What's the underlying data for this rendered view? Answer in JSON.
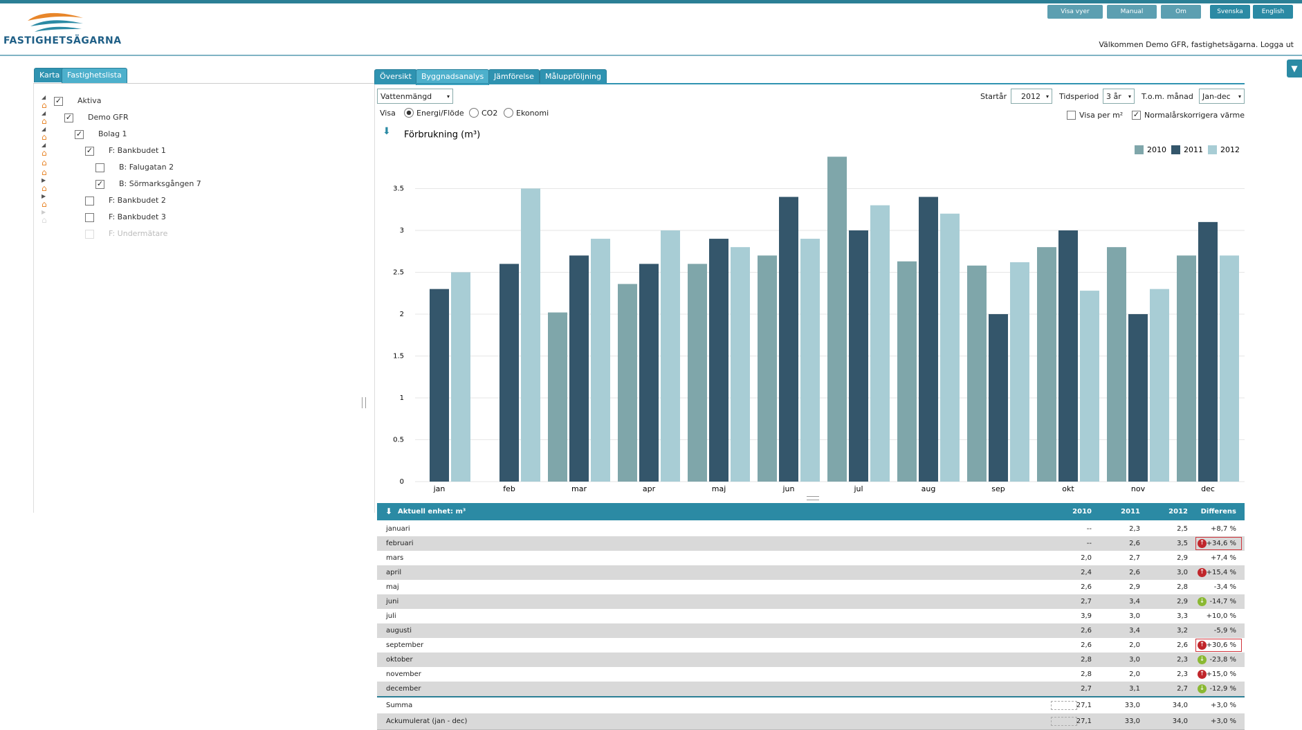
{
  "header": {
    "logo": "FASTIGHETSÄGARNA",
    "buttons": [
      "Visa vyer",
      "Manual",
      "Om",
      "Svenska",
      "English"
    ],
    "welcome": "Välkommen Demo GFR, fastighetsägarna.",
    "logout": "Logga ut"
  },
  "left_tabs": {
    "items": [
      "Karta",
      "Fastighetslista"
    ],
    "active": 1
  },
  "tree": [
    {
      "label": "Aktiva",
      "level": 0,
      "state": "expanded",
      "checked": true
    },
    {
      "label": "Demo GFR",
      "level": 1,
      "state": "expanded",
      "checked": true
    },
    {
      "label": "Bolag 1",
      "level": 2,
      "state": "expanded",
      "checked": true
    },
    {
      "label": "F: Bankbudet 1",
      "level": 3,
      "state": "expanded",
      "checked": true
    },
    {
      "label": "B: Falugatan 2",
      "level": 4,
      "state": "leaf",
      "checked": false
    },
    {
      "label": "B: Sörmarksgången 7",
      "level": 4,
      "state": "leaf",
      "checked": true
    },
    {
      "label": "F: Bankbudet 2",
      "level": 3,
      "state": "collapsed",
      "checked": false
    },
    {
      "label": "F: Bankbudet 3",
      "level": 3,
      "state": "collapsed",
      "checked": false
    },
    {
      "label": "F: Undermätare",
      "level": 3,
      "state": "disabled",
      "checked": false
    }
  ],
  "tabs": {
    "items": [
      "Översikt",
      "Byggnadsanalys",
      "Jämförelse",
      "Måluppföljning"
    ],
    "active": 1
  },
  "controls": {
    "measure": "Vattenmängd",
    "visa": "Visa",
    "options": [
      "Energi/Flöde",
      "CO2",
      "Ekonomi"
    ],
    "selected": 0,
    "start_label": "Startår",
    "start_value": "2012",
    "period_label": "Tidsperiod",
    "period_value": "3 år",
    "month_label": "T.o.m. månad",
    "month_value": "Jan-dec",
    "checkboxes": [
      {
        "label": "Visa per m²",
        "checked": false
      },
      {
        "label": "Normalårskorrigera värme",
        "checked": true
      }
    ]
  },
  "chart_data": {
    "type": "bar",
    "title": "Förbrukning (m³)",
    "categories": [
      "jan",
      "feb",
      "mar",
      "apr",
      "maj",
      "jun",
      "jul",
      "aug",
      "sep",
      "okt",
      "nov",
      "dec"
    ],
    "series": [
      {
        "name": "2010",
        "color": "#7fa6aa",
        "values": [
          null,
          null,
          2.02,
          2.36,
          2.6,
          2.7,
          3.88,
          2.63,
          2.58,
          2.8,
          2.8,
          2.7
        ]
      },
      {
        "name": "2011",
        "color": "#34566b",
        "values": [
          2.3,
          2.6,
          2.7,
          2.6,
          2.9,
          3.4,
          3.0,
          3.4,
          2.0,
          3.0,
          2.0,
          3.1
        ]
      },
      {
        "name": "2012",
        "color": "#a8cdd5",
        "values": [
          2.5,
          3.5,
          2.9,
          3.0,
          2.8,
          2.9,
          3.3,
          3.2,
          2.62,
          2.28,
          2.3,
          2.7
        ]
      }
    ],
    "ylim": [
      0,
      3.95
    ],
    "yticks": [
      0,
      0.5,
      1,
      1.5,
      2,
      2.5,
      3,
      3.5
    ],
    "grid": true,
    "legend": "top-right"
  },
  "table": {
    "header": [
      "Aktuell enhet: m³",
      "2010",
      "2011",
      "2012",
      "Differens"
    ],
    "rows": [
      {
        "cells": [
          "januari",
          "--",
          "2,3",
          "2,5",
          "+8,7 %"
        ],
        "trend": null,
        "highlight": false
      },
      {
        "cells": [
          "februari",
          "--",
          "2,6",
          "3,5",
          "+34,6 %"
        ],
        "trend": "up",
        "highlight": true
      },
      {
        "cells": [
          "mars",
          "2,0",
          "2,7",
          "2,9",
          "+7,4 %"
        ],
        "trend": null,
        "highlight": false
      },
      {
        "cells": [
          "april",
          "2,4",
          "2,6",
          "3,0",
          "+15,4 %"
        ],
        "trend": "up",
        "highlight": false
      },
      {
        "cells": [
          "maj",
          "2,6",
          "2,9",
          "2,8",
          "-3,4 %"
        ],
        "trend": null,
        "highlight": false
      },
      {
        "cells": [
          "juni",
          "2,7",
          "3,4",
          "2,9",
          "-14,7 %"
        ],
        "trend": "down",
        "highlight": false
      },
      {
        "cells": [
          "juli",
          "3,9",
          "3,0",
          "3,3",
          "+10,0 %"
        ],
        "trend": null,
        "highlight": false
      },
      {
        "cells": [
          "augusti",
          "2,6",
          "3,4",
          "3,2",
          "-5,9 %"
        ],
        "trend": null,
        "highlight": false
      },
      {
        "cells": [
          "september",
          "2,6",
          "2,0",
          "2,6",
          "+30,6 %"
        ],
        "trend": "up",
        "highlight": true
      },
      {
        "cells": [
          "oktober",
          "2,8",
          "3,0",
          "2,3",
          "-23,8 %"
        ],
        "trend": "down",
        "highlight": false
      },
      {
        "cells": [
          "november",
          "2,8",
          "2,0",
          "2,3",
          "+15,0 %"
        ],
        "trend": "up",
        "highlight": false
      },
      {
        "cells": [
          "december",
          "2,7",
          "3,1",
          "2,7",
          "-12,9 %"
        ],
        "trend": "down",
        "highlight": false
      }
    ],
    "totals": [
      [
        "Summa",
        "27,1",
        "33,0",
        "34,0",
        "+3,0 %"
      ],
      [
        "Ackumulerat (jan - dec)",
        "27,1",
        "33,0",
        "34,0",
        "+3,0 %"
      ]
    ]
  }
}
